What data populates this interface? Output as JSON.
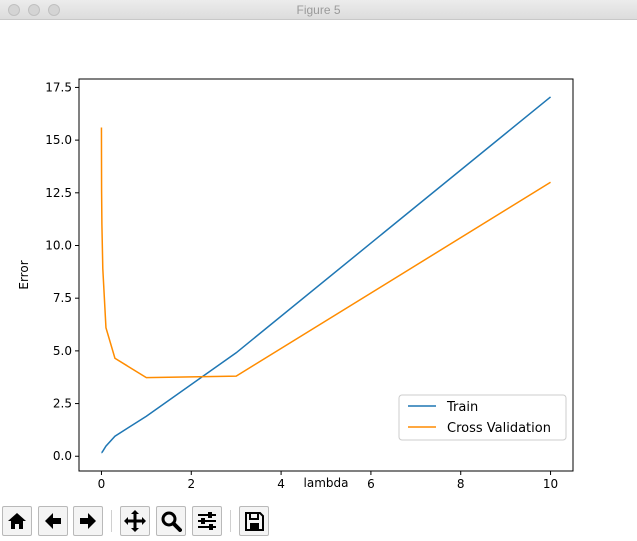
{
  "window": {
    "title": "Figure 5"
  },
  "toolbar": {
    "buttons": [
      {
        "name": "home-button",
        "icon": "home-icon"
      },
      {
        "name": "back-button",
        "icon": "arrow-left-icon"
      },
      {
        "name": "forward-button",
        "icon": "arrow-right-icon"
      },
      {
        "name": "pan-button",
        "icon": "move-icon"
      },
      {
        "name": "zoom-button",
        "icon": "magnifier-icon"
      },
      {
        "name": "configure-subplots-button",
        "icon": "sliders-icon"
      },
      {
        "name": "save-button",
        "icon": "floppy-disk-icon"
      }
    ]
  },
  "chart_data": {
    "type": "line",
    "title": "",
    "xlabel": "lambda",
    "ylabel": "Error",
    "xlim": [
      -0.5,
      10.5
    ],
    "ylim": [
      -0.7,
      17.9
    ],
    "xticks": [
      0,
      2,
      4,
      6,
      8,
      10
    ],
    "xtick_labels": [
      "0",
      "2",
      "4",
      "6",
      "8",
      "10"
    ],
    "yticks": [
      0.0,
      2.5,
      5.0,
      7.5,
      10.0,
      12.5,
      15.0,
      17.5
    ],
    "ytick_labels": [
      "0.0",
      "2.5",
      "5.0",
      "7.5",
      "10.0",
      "12.5",
      "15.0",
      "17.5"
    ],
    "grid": false,
    "legend_position": "lower-right",
    "series": [
      {
        "name": "Train",
        "color": "#1f77b4",
        "x": [
          0,
          0.001,
          0.003,
          0.01,
          0.03,
          0.1,
          0.3,
          1,
          3,
          10
        ],
        "y": [
          0.17,
          0.17,
          0.17,
          0.18,
          0.24,
          0.48,
          0.95,
          1.9,
          4.91,
          17.05
        ]
      },
      {
        "name": "Cross Validation",
        "color": "#ff8c00",
        "x": [
          0,
          0.001,
          0.003,
          0.01,
          0.03,
          0.1,
          0.3,
          1,
          3,
          10
        ],
        "y": [
          15.6,
          14.2,
          12.6,
          11.0,
          8.9,
          6.1,
          4.65,
          3.73,
          3.8,
          13.0
        ]
      }
    ]
  }
}
